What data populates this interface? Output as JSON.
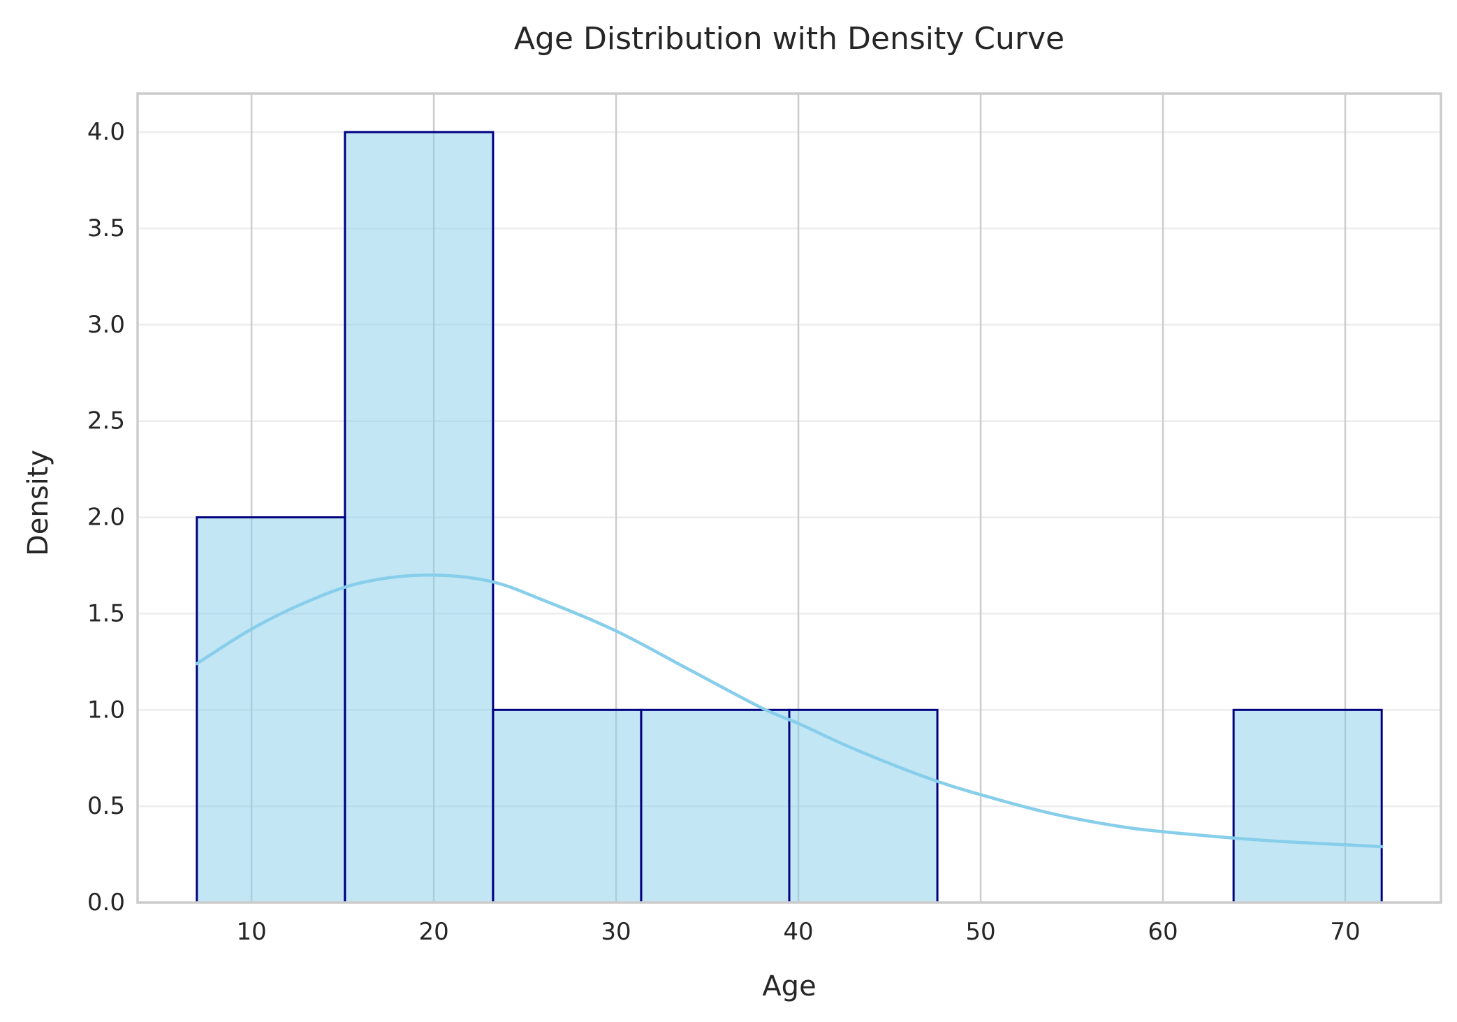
{
  "chart_data": {
    "type": "bar",
    "title": "Age Distribution with Density Curve",
    "xlabel": "Age",
    "ylabel": "Density",
    "xlim": [
      3.75,
      75.25
    ],
    "ylim": [
      0,
      4.2
    ],
    "x_ticks": [
      10,
      20,
      30,
      40,
      50,
      60,
      70
    ],
    "y_ticks": [
      0.0,
      0.5,
      1.0,
      1.5,
      2.0,
      2.5,
      3.0,
      3.5,
      4.0
    ],
    "x_tick_labels": [
      "10",
      "20",
      "30",
      "40",
      "50",
      "60",
      "70"
    ],
    "y_tick_labels": [
      "0.0",
      "0.5",
      "1.0",
      "1.5",
      "2.0",
      "2.5",
      "3.0",
      "3.5",
      "4.0"
    ],
    "grid": true,
    "bins": [
      {
        "x0": 7.0,
        "x1": 15.125,
        "value": 2
      },
      {
        "x0": 15.125,
        "x1": 23.25,
        "value": 4
      },
      {
        "x0": 23.25,
        "x1": 31.375,
        "value": 1
      },
      {
        "x0": 31.375,
        "x1": 39.5,
        "value": 1
      },
      {
        "x0": 39.5,
        "x1": 47.625,
        "value": 1
      },
      {
        "x0": 47.625,
        "x1": 55.75,
        "value": 0
      },
      {
        "x0": 55.75,
        "x1": 63.875,
        "value": 0
      },
      {
        "x0": 63.875,
        "x1": 72.0,
        "value": 1
      }
    ],
    "density_curve": {
      "x": [
        7,
        10,
        13,
        16,
        19.5,
        23,
        26,
        30,
        34,
        38,
        40,
        43,
        47,
        50,
        54,
        58,
        62,
        66,
        70,
        72
      ],
      "y": [
        1.24,
        1.42,
        1.56,
        1.66,
        1.7,
        1.67,
        1.57,
        1.41,
        1.21,
        1.01,
        0.93,
        0.8,
        0.65,
        0.56,
        0.46,
        0.39,
        0.35,
        0.32,
        0.3,
        0.29
      ]
    },
    "colors": {
      "bar_fill": "#87ceeb",
      "bar_edge": "#000080",
      "curve": "#87ceeb",
      "grid": "#cccccc",
      "text": "#262626"
    }
  }
}
